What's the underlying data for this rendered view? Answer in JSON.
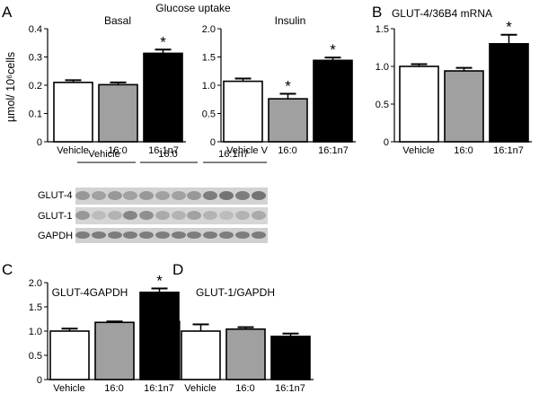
{
  "figure_title": "Glucose uptake",
  "panels": [
    {
      "letter": "A"
    },
    {
      "letter": "B"
    },
    {
      "letter": "C"
    },
    {
      "letter": "D"
    }
  ],
  "ylabel_A": "µmol/ 10⁶cells",
  "colors": {
    "vehicle": "#ffffff",
    "c16_0": "#a0a0a0",
    "c16_1n7": "#000000"
  },
  "blot": {
    "groups": [
      "Vehicle",
      "16:0",
      "16:1n7"
    ],
    "rows": [
      "GLUT-4",
      "GLUT-1",
      "GAPDH"
    ]
  },
  "chart_data": [
    {
      "type": "bar",
      "panel": "A",
      "title": "Basal",
      "categories": [
        "Vehicle",
        "16:0",
        "16:1n7"
      ],
      "values": [
        0.21,
        0.202,
        0.313
      ],
      "errors": [
        0.008,
        0.008,
        0.013
      ],
      "significant": [
        false,
        false,
        true
      ],
      "ylim": [
        0,
        0.4
      ],
      "yticks": [
        "0",
        "0.1",
        "0.2",
        "0.3",
        "0.4"
      ]
    },
    {
      "type": "bar",
      "panel": "A",
      "title": "Insulin",
      "categories": [
        "Vehicle V",
        "16:0",
        "16:1n7"
      ],
      "values": [
        1.07,
        0.76,
        1.44
      ],
      "errors": [
        0.05,
        0.09,
        0.05
      ],
      "significant": [
        false,
        true,
        true
      ],
      "ylim": [
        0,
        2.0
      ],
      "yticks": [
        "0",
        "0.5",
        "1.0",
        "1.5",
        "2.0"
      ]
    },
    {
      "type": "bar",
      "panel": "B",
      "title": "GLUT-4/36B4 mRNA",
      "categories": [
        "Vehicle",
        "16:0",
        "16:1n7"
      ],
      "values": [
        1.0,
        0.94,
        1.3
      ],
      "errors": [
        0.03,
        0.04,
        0.12
      ],
      "significant": [
        false,
        false,
        true
      ],
      "ylim": [
        0,
        1.5
      ],
      "yticks": [
        "0",
        "0.5",
        "1.0",
        "1.5"
      ]
    },
    {
      "type": "bar",
      "panel": "C",
      "title": "GLUT-4GAPDH",
      "categories": [
        "Vehicle",
        "16:0",
        "16:1n7"
      ],
      "values": [
        1.0,
        1.18,
        1.8
      ],
      "errors": [
        0.05,
        0.02,
        0.08
      ],
      "significant": [
        false,
        false,
        true
      ],
      "ylim": [
        0,
        2.0
      ],
      "yticks": [
        "0",
        "0.5",
        "1.0",
        "1.5",
        "2.0"
      ]
    },
    {
      "type": "bar",
      "panel": "D",
      "title": "GLUT-1/GAPDH",
      "categories": [
        "Vehicle",
        "16:0",
        "16:1n7"
      ],
      "values": [
        1.0,
        1.04,
        0.89
      ],
      "errors": [
        0.14,
        0.04,
        0.06
      ],
      "significant": [
        false,
        false,
        false
      ],
      "ylim": [
        0,
        2.0
      ],
      "yticks": []
    }
  ]
}
